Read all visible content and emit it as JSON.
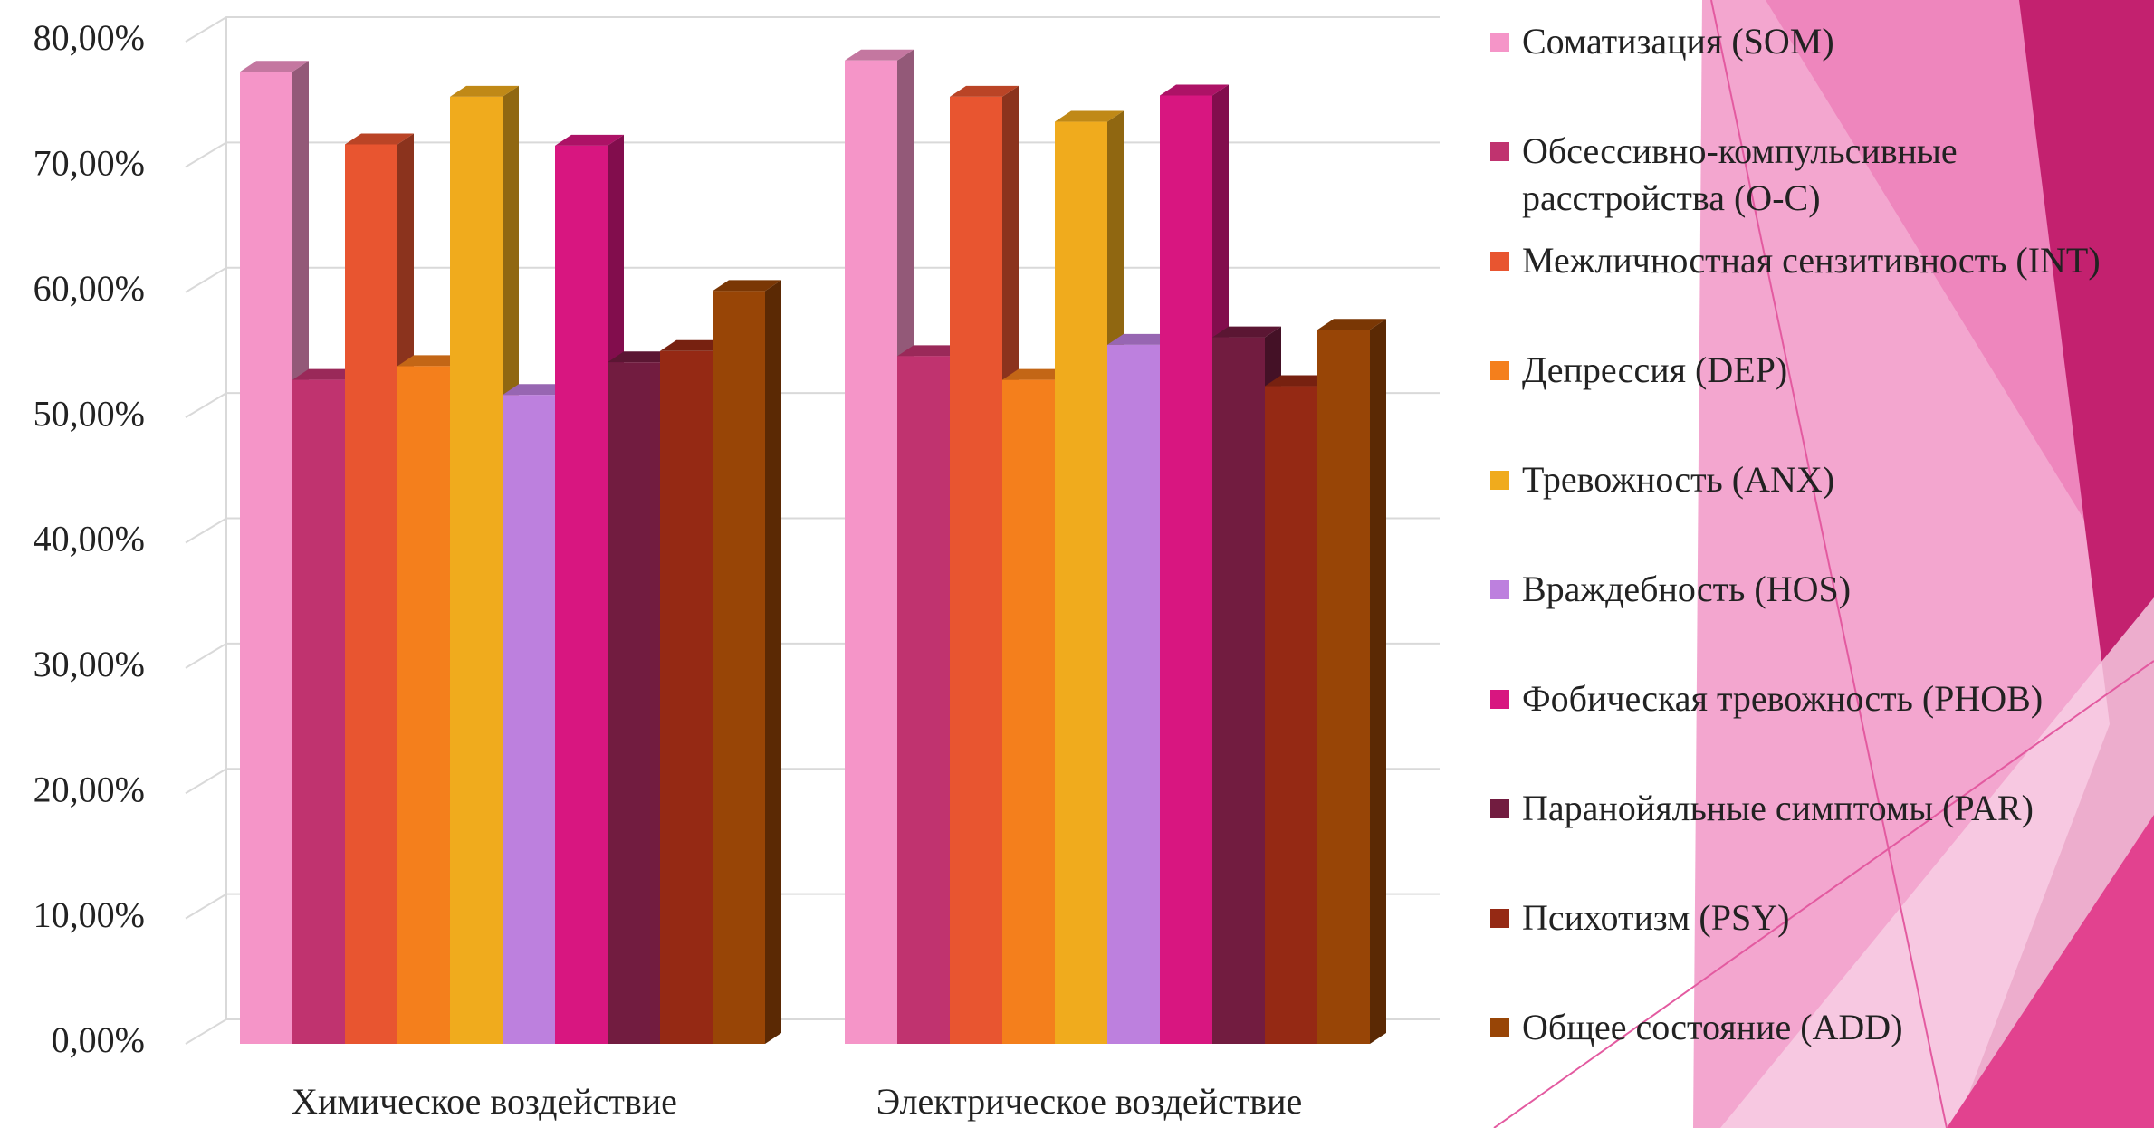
{
  "chart_data": {
    "type": "bar3d",
    "categories": [
      "Химическое воздействие",
      "Электрическое воздействие"
    ],
    "series": [
      {
        "name": "Соматизация (SOM)",
        "color": "#f595c8",
        "values": [
          77.6,
          78.5
        ]
      },
      {
        "name": "Обсессивно-компульсивные расстройства (O-C)",
        "color": "#c0336f",
        "values": [
          53,
          54.9
        ]
      },
      {
        "name": "Межличностная сензитивность (INT)",
        "color": "#e85530",
        "values": [
          71.8,
          75.6
        ]
      },
      {
        "name": "Депрессия (DEP)",
        "color": "#f47f1c",
        "values": [
          54.1,
          53
        ]
      },
      {
        "name": "Тревожность (ANX)",
        "color": "#f0ab1d",
        "values": [
          75.6,
          73.6
        ]
      },
      {
        "name": "Враждебность (HOS)",
        "color": "#bd80de",
        "values": [
          51.8,
          55.8
        ]
      },
      {
        "name": "Фобическая тревожность (PHOB)",
        "color": "#d81680",
        "values": [
          71.7,
          75.7
        ]
      },
      {
        "name": "Паранойяльные симптомы (PAR)",
        "color": "#721c40",
        "values": [
          54.4,
          56.4
        ]
      },
      {
        "name": "Психотизм (PSY)",
        "color": "#952914",
        "values": [
          55.3,
          52.5
        ]
      },
      {
        "name": "Общее состояние (ADD)",
        "color": "#984506",
        "values": [
          60.1,
          57
        ]
      }
    ],
    "ylim": [
      0,
      80
    ],
    "yticks": [
      {
        "value": 0,
        "label": "0,00%"
      },
      {
        "value": 10,
        "label": "10,00%"
      },
      {
        "value": 20,
        "label": "20,00%"
      },
      {
        "value": 30,
        "label": "30,00%"
      },
      {
        "value": 40,
        "label": "40,00%"
      },
      {
        "value": 50,
        "label": "50,00%"
      },
      {
        "value": 60,
        "label": "60,00%"
      },
      {
        "value": 70,
        "label": "70,00%"
      },
      {
        "value": 80,
        "label": "80,00%"
      }
    ],
    "grid": true
  }
}
